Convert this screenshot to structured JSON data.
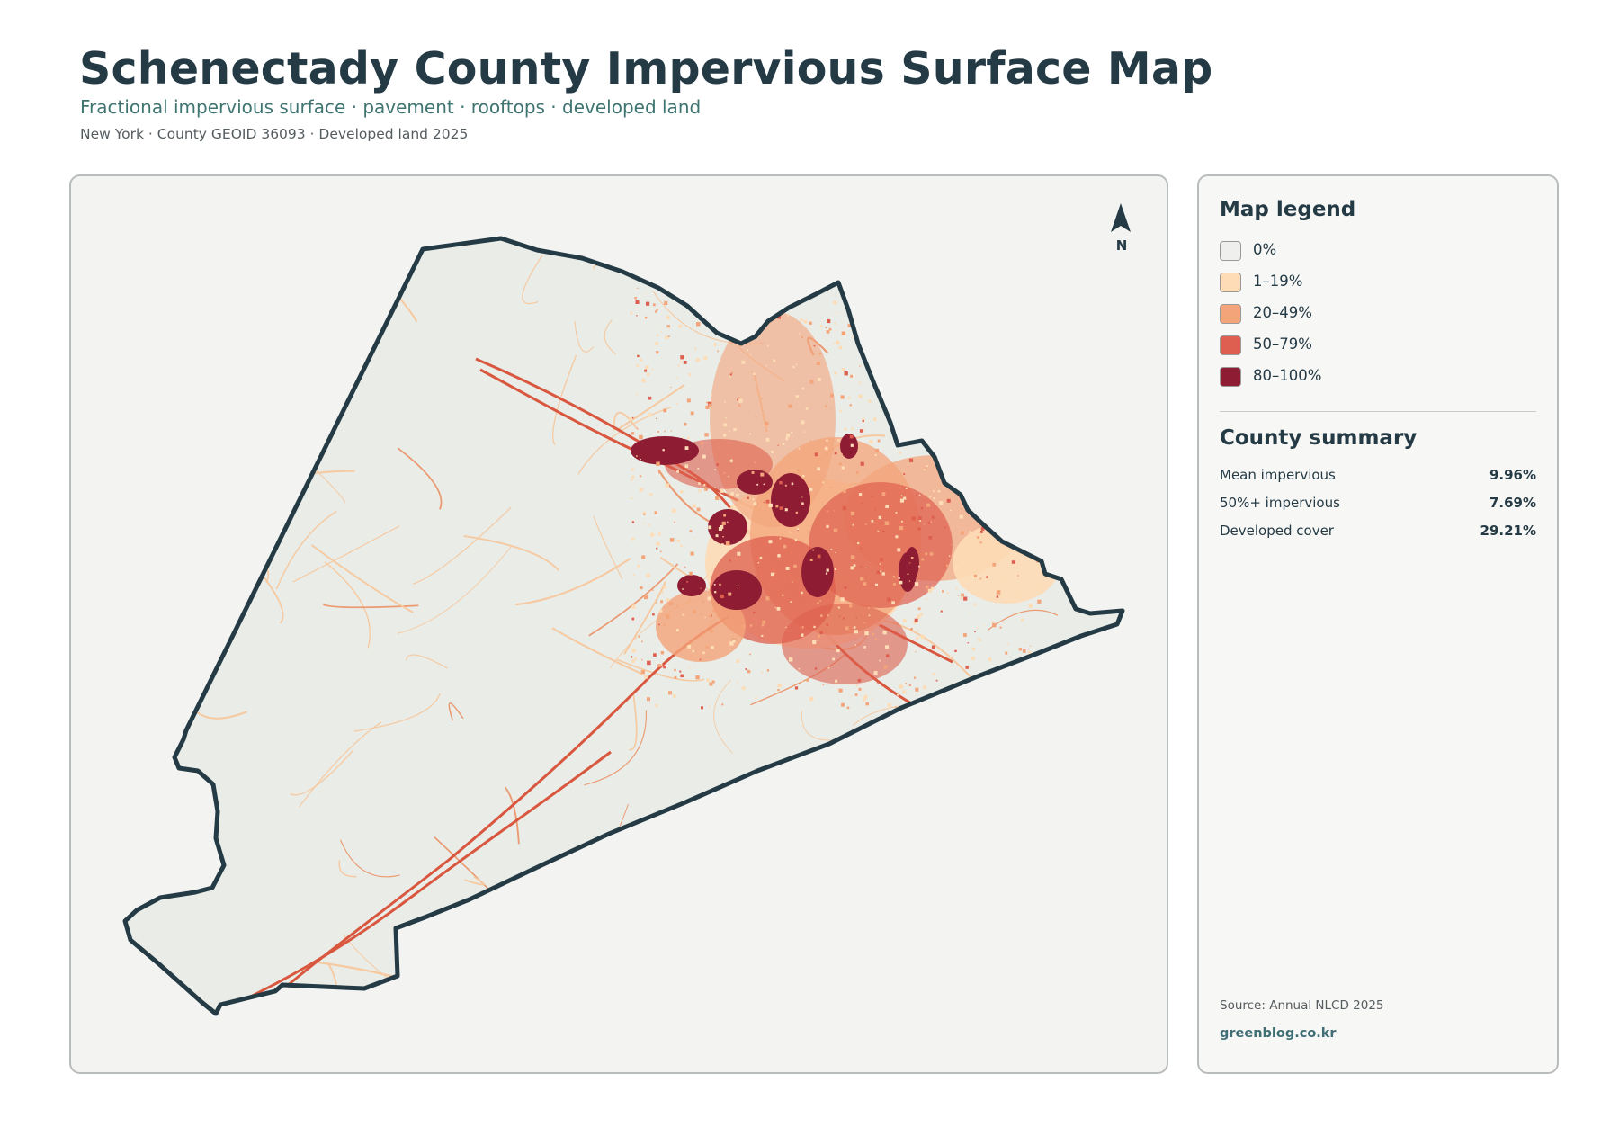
{
  "header": {
    "title": "Schenectady County Impervious Surface Map",
    "subtitle": "Fractional impervious surface · pavement · rooftops · developed land",
    "meta": "New York · County GEOID 36093 · Developed land 2025"
  },
  "map": {
    "north_label": "N",
    "colors": {
      "background": "#f3f3f1",
      "land": "#e9ece7",
      "boundary": "#243a45",
      "road_light": "#f6c9a0",
      "road_mid": "#eb9a72",
      "road_strong": "#d9573f",
      "dense": "#8e1d34"
    }
  },
  "legend": {
    "title": "Map legend",
    "items": [
      {
        "label": "0%",
        "color": "#efefed"
      },
      {
        "label": "1–19%",
        "color": "#fddcb6"
      },
      {
        "label": "20–49%",
        "color": "#f4a479"
      },
      {
        "label": "50–79%",
        "color": "#de5f4f"
      },
      {
        "label": "80–100%",
        "color": "#8e1d34"
      }
    ]
  },
  "summary": {
    "title": "County summary",
    "stats": [
      {
        "label": "Mean impervious",
        "value": "9.96%"
      },
      {
        "label": "50%+ impervious",
        "value": "7.69%"
      },
      {
        "label": "Developed cover",
        "value": "29.21%"
      }
    ]
  },
  "footer": {
    "source": "Source: Annual NLCD 2025",
    "site": "greenblog.co.kr"
  }
}
